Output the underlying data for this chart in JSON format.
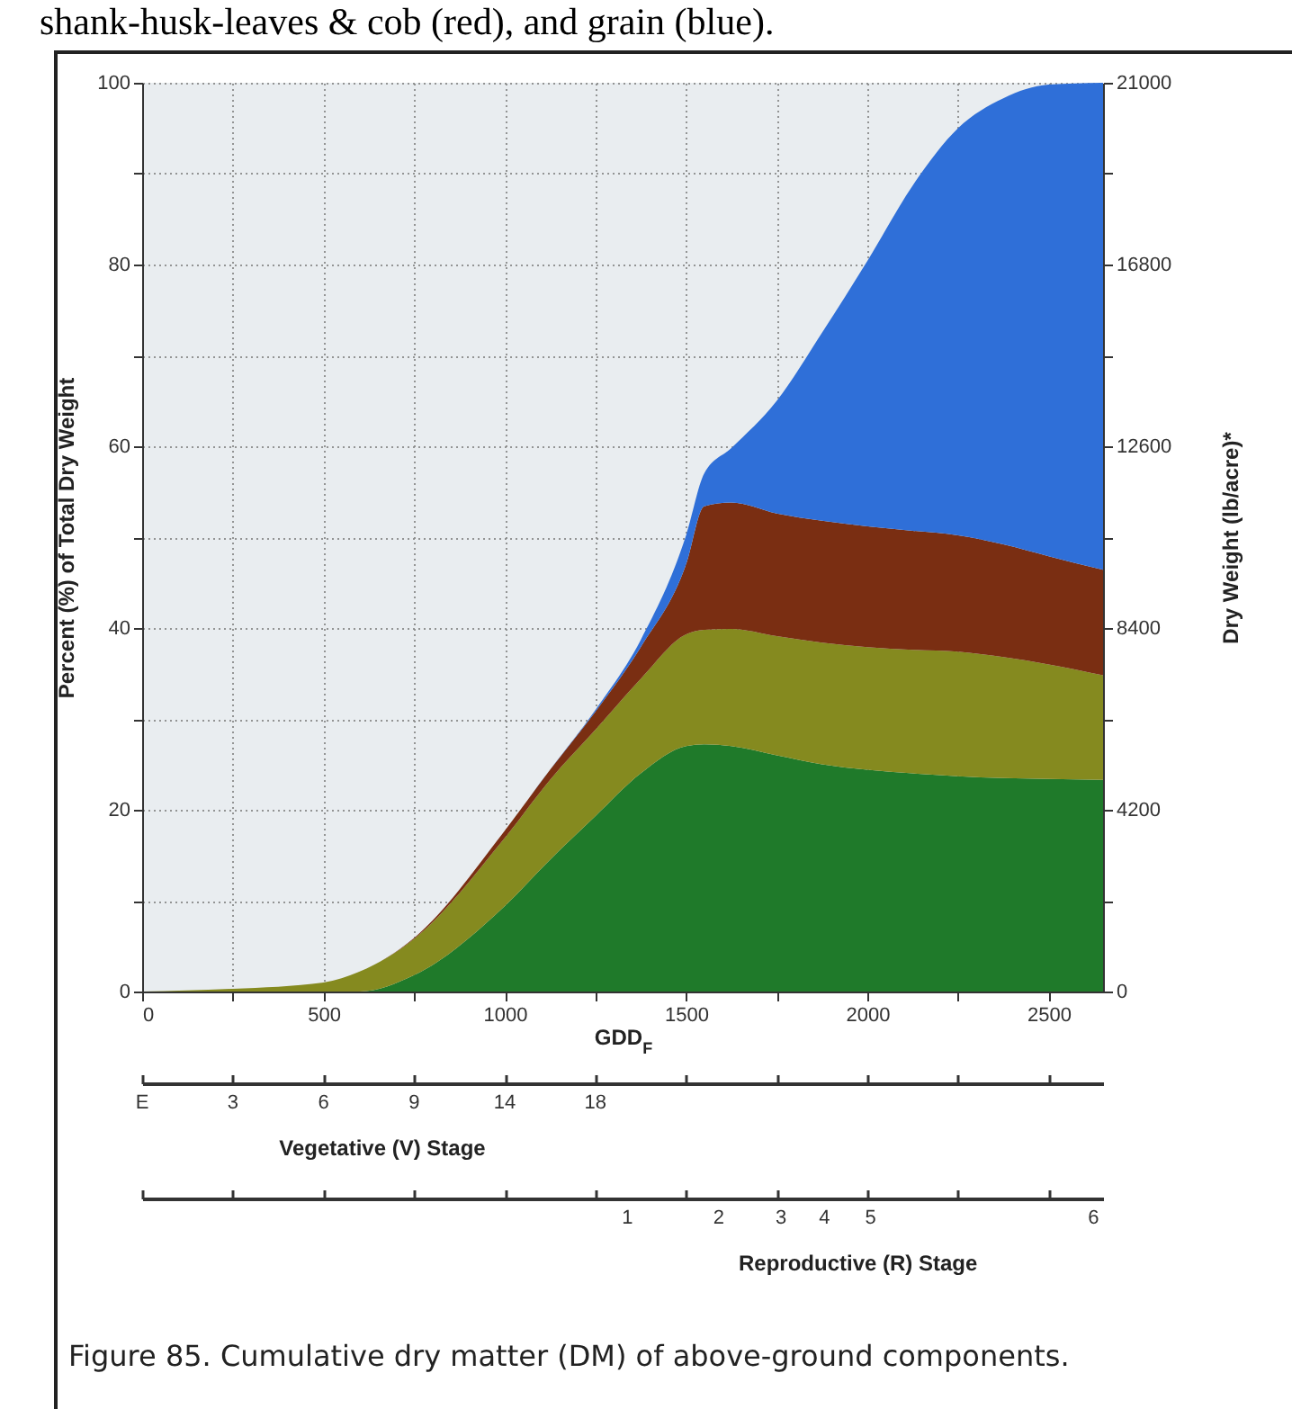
{
  "chart_data": {
    "type": "area",
    "stacked": true,
    "title": "shank-husk-leaves & cob (red), and grain (blue).",
    "annotations": [
      {
        "text": "E",
        "x": 0
      },
      {
        "text": "3",
        "x": 250
      },
      {
        "text": "6",
        "x": 500
      },
      {
        "text": "9",
        "x": 750
      },
      {
        "text": "14",
        "x": 1000
      },
      {
        "text": "18",
        "x": 1250
      },
      "Vegetative (V) Stage",
      "1",
      "2",
      "3",
      "4",
      "5",
      "6",
      "Reproductive (R) Stage",
      "Figure 85. Cumulative dry matter (DM) of above-ground components."
    ],
    "xlabel": "GDD$_{F}$",
    "ylabel": "Percent (%) of Total Dry Weight",
    "y2label": "Dry Weight (lb/acre)*",
    "x": [
      0,
      250,
      500,
      600,
      750,
      1000,
      1125,
      1250,
      1375,
      1500,
      1550,
      1625,
      1750,
      1875,
      2000,
      2125,
      2250,
      2375,
      2500,
      2650
    ],
    "series": [
      {
        "color": "#1f7a2a",
        "values": [
          0,
          0,
          0,
          0,
          1.8,
          9.4,
          14.5,
          19.3,
          24,
          27,
          27.2,
          27,
          26,
          25,
          24.4,
          24,
          23.7,
          23.5,
          23.4,
          23.3
        ]
      },
      {
        "color": "#858a1f",
        "values": [
          0,
          0.3,
          1,
          2.2,
          4,
          7.5,
          8.8,
          9.5,
          10.4,
          12.3,
          12.6,
          12.9,
          13.1,
          13.4,
          13.5,
          13.6,
          13.7,
          13.3,
          12.6,
          11.5
        ]
      },
      {
        "color": "#7a2e12",
        "values": [
          0,
          0,
          0,
          0,
          0.1,
          0.8,
          1.1,
          2,
          3.5,
          7.7,
          13.6,
          13.9,
          13.5,
          13.4,
          13.3,
          13.1,
          12.8,
          12.4,
          11.9,
          11.6
        ]
      },
      {
        "color": "#2f6fd8",
        "values": [
          0,
          0,
          0,
          0,
          0,
          0,
          0,
          0.2,
          0.8,
          3.2,
          3.6,
          6,
          12.4,
          20.7,
          29.2,
          38,
          44.8,
          49.1,
          51.9,
          53.6
        ]
      }
    ],
    "xlim": [
      0,
      2650
    ],
    "xticks": [
      0,
      {
        "value": 250,
        "label": null
      },
      500,
      {
        "value": 750,
        "label": null
      },
      1000,
      {
        "value": 1250,
        "label": null
      },
      1500,
      {
        "value": 1750,
        "label": null
      },
      2000,
      {
        "value": 2250,
        "label": null
      },
      2500
    ],
    "ylim": [
      0,
      100
    ],
    "yticks": [
      0,
      {
        "value": 10,
        "label": null
      },
      20,
      {
        "value": 30,
        "label": null
      },
      40,
      {
        "value": 50,
        "label": null
      },
      60,
      {
        "value": 70,
        "label": null
      },
      80,
      {
        "value": 90,
        "label": null
      },
      100
    ],
    "y2lim": [
      0,
      21000
    ],
    "y2ticks": [
      0,
      {
        "value": 2100,
        "label": null
      },
      4200,
      {
        "value": 6300,
        "label": null
      },
      8400,
      {
        "value": 10500,
        "label": null
      },
      12600,
      {
        "value": 14700,
        "label": null
      },
      16800,
      {
        "value": 18900,
        "label": null
      },
      21000
    ],
    "grid": true
  }
}
